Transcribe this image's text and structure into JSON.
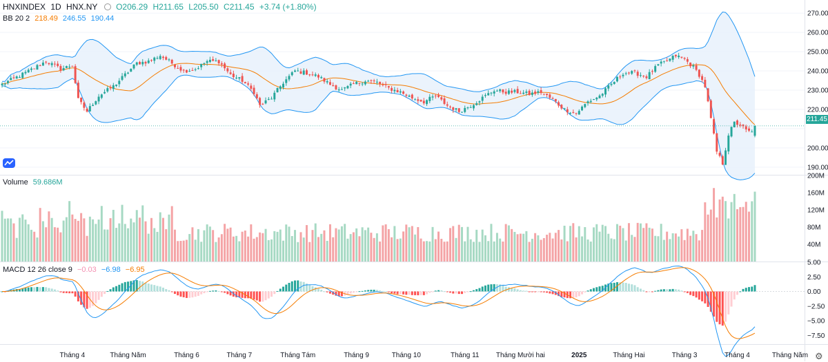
{
  "header": {
    "symbol": "HNXINDEX",
    "interval": "1D",
    "exchange": "HNX.NY",
    "open": "O206.29",
    "high": "H211.65",
    "low": "L205.50",
    "close": "C211.45",
    "change": "+3.74 (+1.80%)"
  },
  "bb_legend": {
    "label": "BB 20 2",
    "basis": "218.49",
    "upper": "246.55",
    "lower": "190.44"
  },
  "volume_legend": {
    "label": "Volume",
    "value": "59.686M"
  },
  "macd_legend": {
    "label": "MACD 12 26 close 9",
    "hist": "−0.03",
    "macd": "−6.98",
    "signal": "−6.95"
  },
  "last_price_label": "211.45",
  "colors": {
    "up": "#26a69a",
    "down": "#ef5350",
    "upVol": "#a6d9c3",
    "downVol": "#f4a3a5",
    "bbBasis": "#f57c00",
    "bbBand": "#2196f3",
    "bbFill": "#e8f1fb"
  },
  "chart_data": {
    "type": "candlestick",
    "title": "HNXINDEX 1D HNX.NY",
    "x_labels": [
      "Tháng 4",
      "Tháng Năm",
      "Tháng 6",
      "Tháng 7",
      "Tháng Tám",
      "Tháng 9",
      "Tháng 10",
      "Tháng 11",
      "Tháng Mười hai",
      "2025",
      "Tháng Hai",
      "Tháng 3",
      "Tháng 4",
      "Tháng Năm"
    ],
    "x_label_index": [
      24,
      43,
      63,
      81,
      101,
      121,
      138,
      158,
      177,
      197,
      214,
      233,
      251,
      269
    ],
    "price_axis": {
      "ticks": [
        270,
        260,
        250,
        240,
        230,
        220,
        210,
        200,
        190
      ],
      "min": 186,
      "max": 274
    },
    "volume_axis": {
      "ticks": [
        "200M",
        "160M",
        "120M",
        "80M",
        "40M"
      ],
      "values": [
        200,
        160,
        120,
        80,
        40
      ],
      "max": 200
    },
    "macd_axis": {
      "ticks": [
        "5.00",
        "2.50",
        "0.00",
        "−2.50",
        "−5.00",
        "−7.50"
      ],
      "values": [
        5,
        2.5,
        0,
        -2.5,
        -5,
        -7.5
      ],
      "min": -9,
      "max": 5
    },
    "close_keyframes": [
      [
        0,
        233
      ],
      [
        8,
        239
      ],
      [
        15,
        245
      ],
      [
        20,
        241
      ],
      [
        24,
        243
      ],
      [
        26,
        225
      ],
      [
        29,
        219
      ],
      [
        33,
        227
      ],
      [
        38,
        232
      ],
      [
        42,
        238
      ],
      [
        46,
        244
      ],
      [
        50,
        245
      ],
      [
        54,
        248
      ],
      [
        58,
        244
      ],
      [
        62,
        240
      ],
      [
        66,
        241
      ],
      [
        70,
        245
      ],
      [
        74,
        245
      ],
      [
        78,
        238
      ],
      [
        82,
        235
      ],
      [
        86,
        229
      ],
      [
        88,
        222
      ],
      [
        92,
        226
      ],
      [
        96,
        234
      ],
      [
        100,
        240
      ],
      [
        104,
        239
      ],
      [
        108,
        237
      ],
      [
        112,
        233
      ],
      [
        116,
        230
      ],
      [
        120,
        233
      ],
      [
        124,
        235
      ],
      [
        128,
        234
      ],
      [
        132,
        231
      ],
      [
        136,
        229
      ],
      [
        140,
        226
      ],
      [
        144,
        224
      ],
      [
        148,
        227
      ],
      [
        152,
        222
      ],
      [
        156,
        219
      ],
      [
        160,
        222
      ],
      [
        164,
        226
      ],
      [
        168,
        230
      ],
      [
        172,
        229
      ],
      [
        176,
        229
      ],
      [
        180,
        228
      ],
      [
        184,
        229
      ],
      [
        188,
        225
      ],
      [
        192,
        220
      ],
      [
        196,
        218
      ],
      [
        200,
        224
      ],
      [
        204,
        227
      ],
      [
        208,
        233
      ],
      [
        212,
        239
      ],
      [
        216,
        239
      ],
      [
        220,
        237
      ],
      [
        224,
        243
      ],
      [
        228,
        246
      ],
      [
        230,
        248
      ],
      [
        233,
        246
      ],
      [
        236,
        242
      ],
      [
        238,
        238
      ],
      [
        240,
        232
      ],
      [
        242,
        215
      ],
      [
        244,
        198
      ],
      [
        246,
        192
      ],
      [
        248,
        207
      ],
      [
        250,
        213
      ],
      [
        252,
        212
      ],
      [
        254,
        209
      ],
      [
        256,
        208
      ],
      [
        257,
        211.45
      ]
    ],
    "last_close": 211.45,
    "bars": 258
  }
}
